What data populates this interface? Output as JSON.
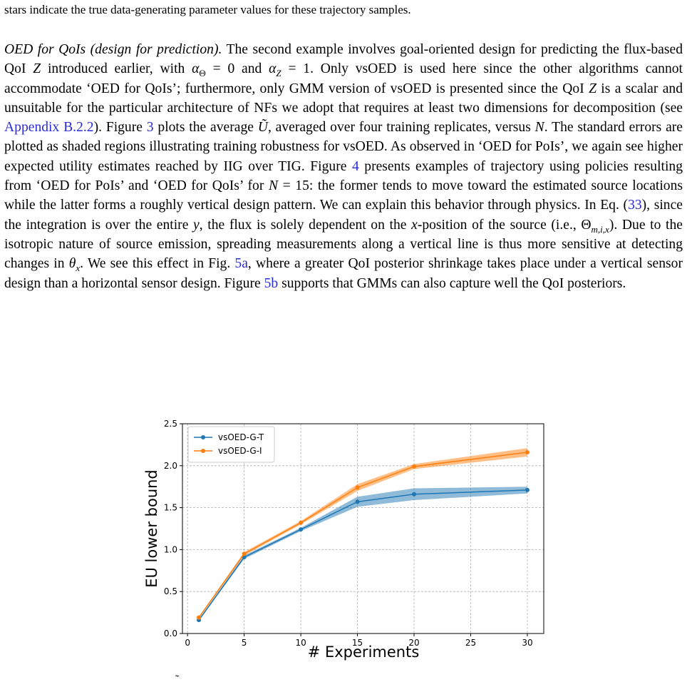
{
  "top_line": "stars indicate the true data-generating parameter values for these trajectory samples.",
  "paragraph": {
    "runs": [
      "OED for QoIs (design for prediction).",
      " The second example involves goal-oriented design for predicting the flux-based QoI ",
      "Z",
      " introduced earlier, with ",
      "α",
      "Θ",
      " = 0 and ",
      "α",
      "Z",
      " = 1. Only vsOED is used here since the other algorithms cannot accommodate ‘OED for QoIs’; furthermore, only GMM version of vsOED is presented since the QoI ",
      "Z",
      " is a scalar and unsuitable for the particular architecture of NFs we adopt that requires at least two dimensions for decomposition (see ",
      "Appendix  B.2.2",
      "). Figure ",
      "3",
      " plots the average ",
      "Ũ",
      ", averaged over four training replicates, versus ",
      "N",
      ". The standard errors are plotted as shaded regions illustrating training robustness for vsOED. As observed in ‘OED for PoIs’, we again see higher expected utility estimates reached by IIG over TIG. Figure ",
      "4",
      " presents examples of trajectory using policies resulting from ‘OED for PoIs’ and ‘OED for QoIs’ for ",
      "N",
      " = 15: the former tends to move toward the estimated source locations while the latter forms a roughly vertical design pattern. We can explain this behavior through physics. In Eq. (",
      "33",
      "), since the integration is over the entire ",
      "y",
      ", the flux is solely dependent on the ",
      "x",
      "-position of the source (i.e., Θ",
      "m,i,x",
      "). Due to the isotropic nature of source emission, spreading measurements along a vertical line is thus more sensitive at detecting changes in ",
      "θ",
      "x",
      ". We see this effect in Fig. ",
      "5a",
      ", where a greater QoI posterior shrinkage takes place under a vertical sensor design than a horizontal sensor design. Figure ",
      "5b",
      " supports that GMMs can also capture well the QoI posteriors."
    ]
  },
  "chart_data": {
    "type": "line",
    "xlabel": "# Experiments",
    "ylabel": "EU lower bound",
    "x": [
      1,
      5,
      10,
      15,
      20,
      30
    ],
    "series": [
      {
        "name": "vsOED-G-T",
        "color": "#1f77b4",
        "values": [
          0.16,
          0.91,
          1.24,
          1.57,
          1.66,
          1.71
        ],
        "errors": [
          0.01,
          0.02,
          0.02,
          0.06,
          0.07,
          0.04
        ]
      },
      {
        "name": "vsOED-G-I",
        "color": "#ff7f0e",
        "values": [
          0.19,
          0.95,
          1.32,
          1.74,
          1.99,
          2.16
        ],
        "errors": [
          0.01,
          0.02,
          0.02,
          0.04,
          0.03,
          0.05
        ]
      }
    ],
    "xlim": [
      -0.45,
      31.45
    ],
    "xticks": [
      0,
      5,
      10,
      15,
      20,
      25,
      30
    ],
    "ylim": [
      0,
      2.5
    ],
    "yticks": [
      {
        "value": 0,
        "label": "0.0"
      },
      0.5,
      {
        "value": 1,
        "label": "1.0"
      },
      1.5,
      {
        "value": 2,
        "label": "2.0"
      },
      2.5
    ],
    "grid": true,
    "legend": "upper left"
  },
  "bottom_fragment": "˜"
}
